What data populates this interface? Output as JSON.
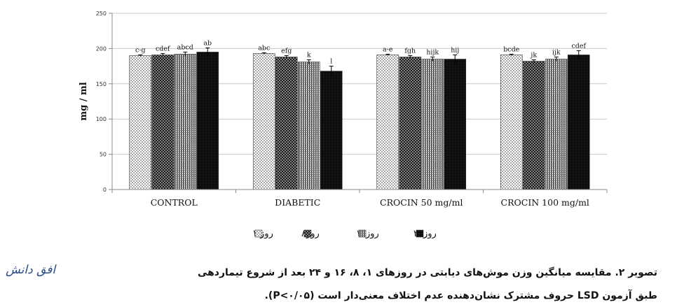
{
  "chart_data": {
    "type": "bar",
    "ylabel": "mg / ml",
    "ylim": [
      0,
      250
    ],
    "yticks": [
      0,
      50,
      100,
      150,
      200,
      250
    ],
    "grid": true,
    "legend_position": "bottom",
    "categories": [
      "CONTROL",
      "DIABETIC",
      "CROCIN 50 mg/ml",
      "CROCIN 100 mg/ml"
    ],
    "series": [
      {
        "name": "روز ۱",
        "pattern": "dots-light",
        "values": [
          190,
          193,
          191,
          191
        ],
        "errors": [
          1,
          1,
          1,
          1
        ],
        "letters": [
          "c-g",
          "abc",
          "a-e",
          "bcde"
        ]
      },
      {
        "name": "روز۸",
        "pattern": "dots-dark",
        "values": [
          191,
          188,
          188,
          182
        ],
        "errors": [
          2,
          2,
          2,
          2
        ],
        "letters": [
          "cdef",
          "efg",
          "fgh",
          "jk"
        ]
      },
      {
        "name": "روز۱۶",
        "pattern": "stripes",
        "values": [
          192,
          181,
          185,
          185
        ],
        "errors": [
          3,
          3,
          3,
          3
        ],
        "letters": [
          "abcd",
          "k",
          "hijk",
          "ijk"
        ]
      },
      {
        "name": "روز۲۴",
        "pattern": "dark",
        "values": [
          195,
          168,
          185,
          191
        ],
        "errors": [
          6,
          7,
          6,
          6
        ],
        "letters": [
          "ab",
          "l",
          "hij",
          "cdef"
        ]
      }
    ]
  },
  "caption": {
    "line1": "تصویر ۲. مقایسه میانگین وزن موش‌های دیابتی در روزهای ۱، ۸، ۱۶ و ۲۴ بعد از شروع تیماردهی",
    "line2": "طبق آزمون LSD حروف مشترک نشان‌دهنده عدم اختلاف معنی‌دار است (P<۰/۰۵)."
  },
  "logo_text": "افق دانش",
  "colors": {
    "axis": "#888888",
    "grid": "#c8c8c8",
    "bar_dark": "#111111",
    "bar_light_dots": "#6b6b6b",
    "text": "#111111"
  }
}
